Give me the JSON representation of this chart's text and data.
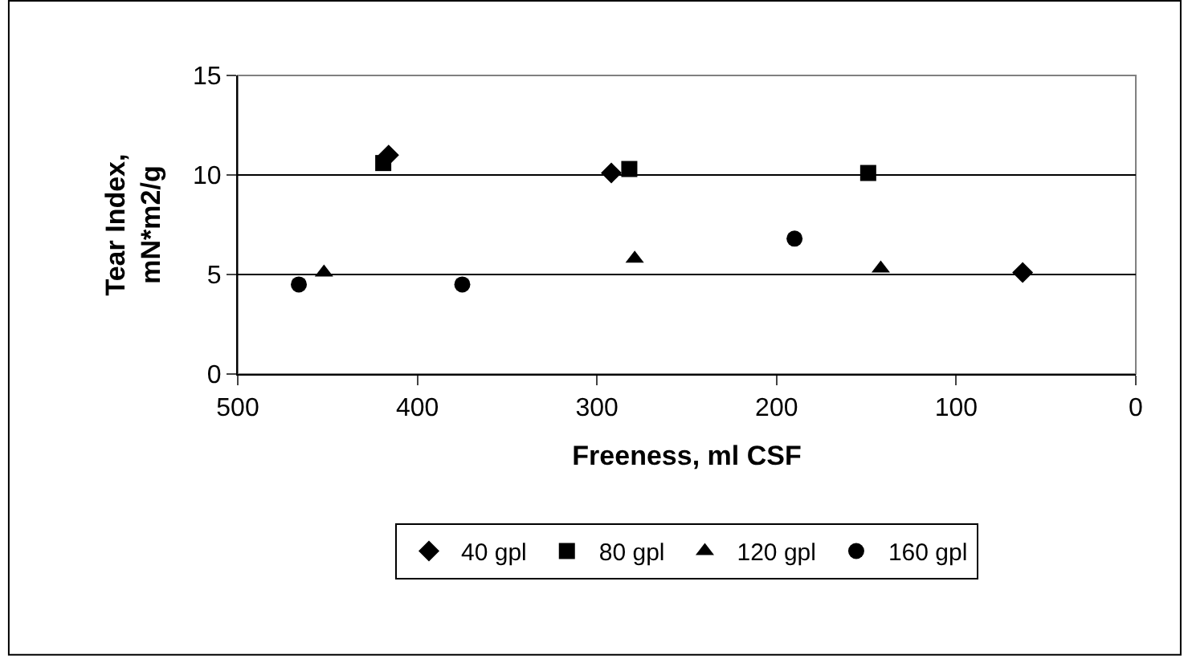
{
  "chart_data": {
    "type": "scatter",
    "xlabel": "Freeness, ml CSF",
    "ylabel": "Tear Index,\nmN*m2/g",
    "xlim": [
      500,
      0
    ],
    "xticks": [
      500,
      400,
      300,
      200,
      100,
      0
    ],
    "ylim": [
      0,
      15
    ],
    "yticks": [
      0,
      5,
      10,
      15
    ],
    "grid": "y",
    "legend": "bottom",
    "series": [
      {
        "name": "40 gpl",
        "color": "#000000",
        "marker": "diamond",
        "x": [
          416,
          292,
          63
        ],
        "values": [
          11.0,
          10.1,
          5.1
        ]
      },
      {
        "name": "80 gpl",
        "color": "#000000",
        "marker": "square",
        "x": [
          419,
          282,
          149
        ],
        "values": [
          10.6,
          10.3,
          10.1
        ]
      },
      {
        "name": "120 gpl",
        "color": "#000000",
        "marker": "triangle",
        "x": [
          452,
          279,
          142
        ],
        "values": [
          5.1,
          5.8,
          5.3
        ]
      },
      {
        "name": "160 gpl",
        "color": "#000000",
        "marker": "circle",
        "x": [
          466,
          375,
          190
        ],
        "values": [
          4.5,
          4.5,
          6.8
        ]
      }
    ]
  }
}
